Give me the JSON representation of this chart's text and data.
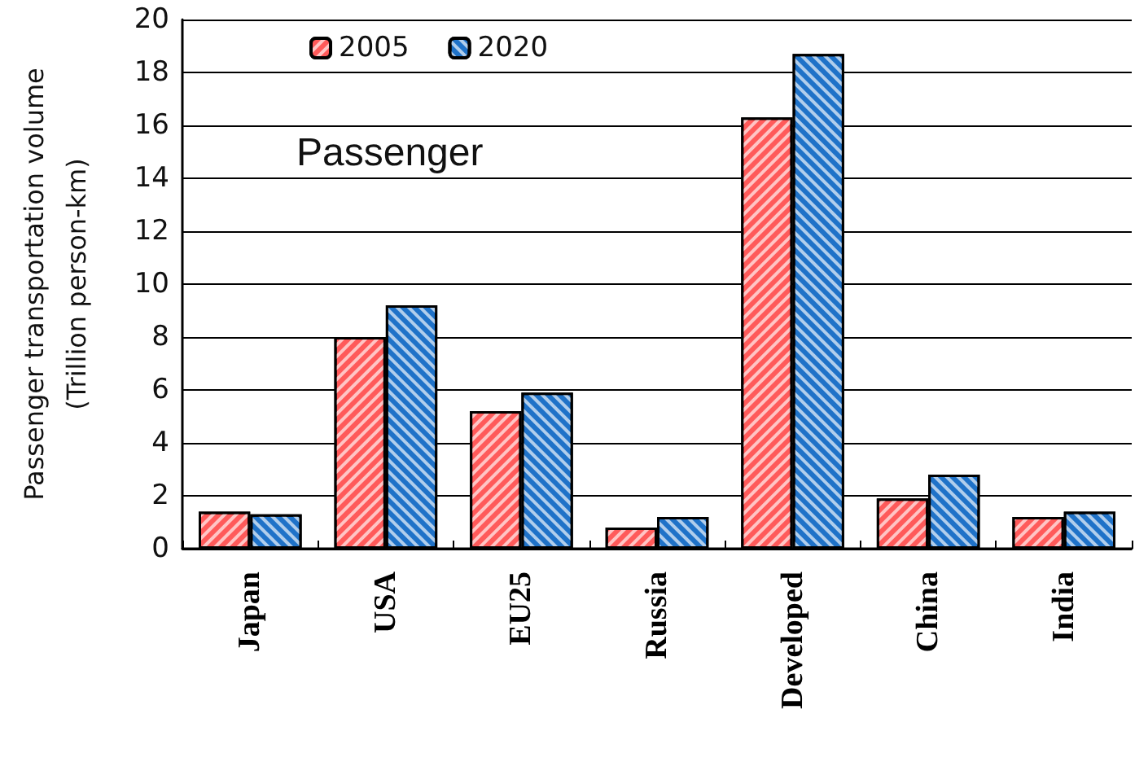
{
  "chart_data": {
    "type": "bar",
    "ylabel": "Passenger transportation volume\n(Trillion person-km)",
    "categories": [
      "Japan",
      "USA",
      "EU25",
      "Russia",
      "Developed",
      "China",
      "India"
    ],
    "series": [
      {
        "name": "2005",
        "color": "#ff5a5a",
        "values": [
          1.4,
          8.0,
          5.2,
          0.8,
          16.3,
          1.9,
          1.2
        ]
      },
      {
        "name": "2020",
        "color": "#1f72c8",
        "values": [
          1.3,
          9.2,
          5.9,
          1.2,
          18.7,
          2.8,
          1.4
        ]
      }
    ],
    "ylim": [
      0,
      20
    ],
    "yticks": [
      0,
      2,
      4,
      6,
      8,
      10,
      12,
      14,
      16,
      18,
      20
    ],
    "grid": "y",
    "legend": "top",
    "annotations": [
      "Passenger"
    ]
  }
}
